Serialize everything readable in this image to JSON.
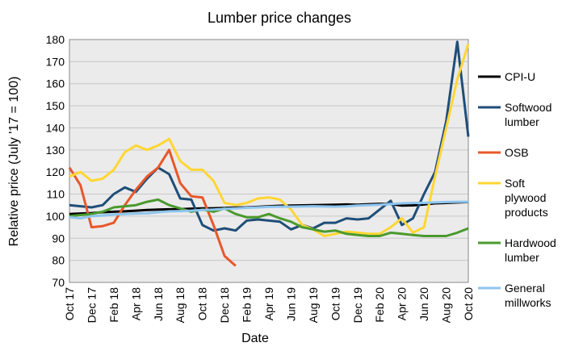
{
  "chart_data": {
    "type": "line",
    "title": "Lumber price changes",
    "x_label": "Date",
    "y_label": "Relative price (July '17 = 100)",
    "categories": [
      "Oct 17",
      null,
      "Dec 17",
      null,
      "Feb 18",
      null,
      "Apr 18",
      null,
      "Jun 18",
      null,
      "Aug 18",
      null,
      "Oct 18",
      null,
      "Dec 18",
      null,
      "Feb 19",
      null,
      "Apr 19",
      null,
      "Jun 19",
      null,
      "Aug 19",
      null,
      "Oct 19",
      null,
      "Dec 19",
      null,
      "Feb 20",
      null,
      "Apr 20",
      null,
      "Jun 20",
      null,
      "Aug 20",
      null,
      "Oct 20"
    ],
    "ylim": [
      70,
      180
    ],
    "yticks": [
      70,
      80,
      90,
      100,
      110,
      120,
      130,
      140,
      150,
      160,
      170,
      180
    ],
    "grid": true,
    "legend": "right",
    "series": [
      {
        "name": "CPI-U",
        "color": "#000000",
        "values": [
          101,
          101.2,
          101.4,
          101.8,
          102,
          102.2,
          102.5,
          102.8,
          103,
          103.1,
          103.2,
          103.4,
          103.5,
          103.6,
          103.7,
          103.9,
          104,
          104.2,
          104.5,
          104.7,
          104.8,
          104.9,
          105,
          105.1,
          105.2,
          105.3,
          105.2,
          105.4,
          105.6,
          105.5,
          104.8,
          104.9,
          105.3,
          105.8,
          106,
          106.2,
          106.4
        ]
      },
      {
        "name": "Softwood lumber",
        "color": "#1f4e79",
        "values": [
          105,
          104.5,
          104,
          105,
          110,
          113,
          111,
          117,
          122,
          119,
          108,
          107.5,
          96,
          93.5,
          94.5,
          93.5,
          98,
          98.5,
          98,
          97.5,
          94,
          96,
          94.5,
          97,
          97,
          99,
          98.5,
          99,
          103,
          107,
          96,
          99,
          110,
          120,
          143,
          179,
          136
        ]
      },
      {
        "name": "OSB",
        "color": "#e8572a",
        "values": [
          122,
          114,
          95,
          95.5,
          97,
          105,
          112,
          118,
          122,
          130,
          115,
          109,
          108.5,
          96,
          82,
          77.5,
          null,
          null,
          null,
          null,
          null,
          null,
          null,
          null,
          null,
          null,
          null,
          null,
          null,
          null,
          null,
          null,
          null,
          null,
          null,
          null,
          null
        ]
      },
      {
        "name": "Soft plywood products",
        "color": "#ffd633",
        "values": [
          118,
          120,
          116,
          117,
          121,
          129,
          132,
          130,
          132,
          135,
          125,
          121,
          121,
          116,
          106,
          105,
          106,
          108,
          108.5,
          107.5,
          103,
          96,
          94,
          91,
          92,
          93,
          92.5,
          92,
          92,
          95,
          99,
          92.5,
          95,
          118,
          140,
          162,
          178
        ]
      },
      {
        "name": "Hardwood lumber",
        "color": "#4a9a2e",
        "values": [
          100,
          100.5,
          101,
          102,
          104,
          104.5,
          105,
          106.5,
          107.5,
          105,
          103.5,
          102,
          103,
          102,
          103.5,
          101,
          99.5,
          99.5,
          101,
          99,
          97.5,
          95,
          94,
          93,
          93.5,
          92,
          91.5,
          91,
          91,
          92.5,
          92,
          91.5,
          91,
          91,
          91,
          92.5,
          94.5
        ]
      },
      {
        "name": "General millworks",
        "color": "#8fc5ee",
        "values": [
          99.5,
          99,
          100,
          100.3,
          100.8,
          101,
          101.2,
          101.3,
          101.8,
          102.2,
          102.3,
          102.5,
          102.8,
          103,
          103.3,
          103.5,
          103.8,
          104,
          104.2,
          104.3,
          104.3,
          104.4,
          104.5,
          104.4,
          104.3,
          104.5,
          104.8,
          105,
          105.2,
          105.5,
          105.8,
          106,
          106,
          106.2,
          106.4,
          106.5,
          106.5
        ]
      }
    ]
  }
}
